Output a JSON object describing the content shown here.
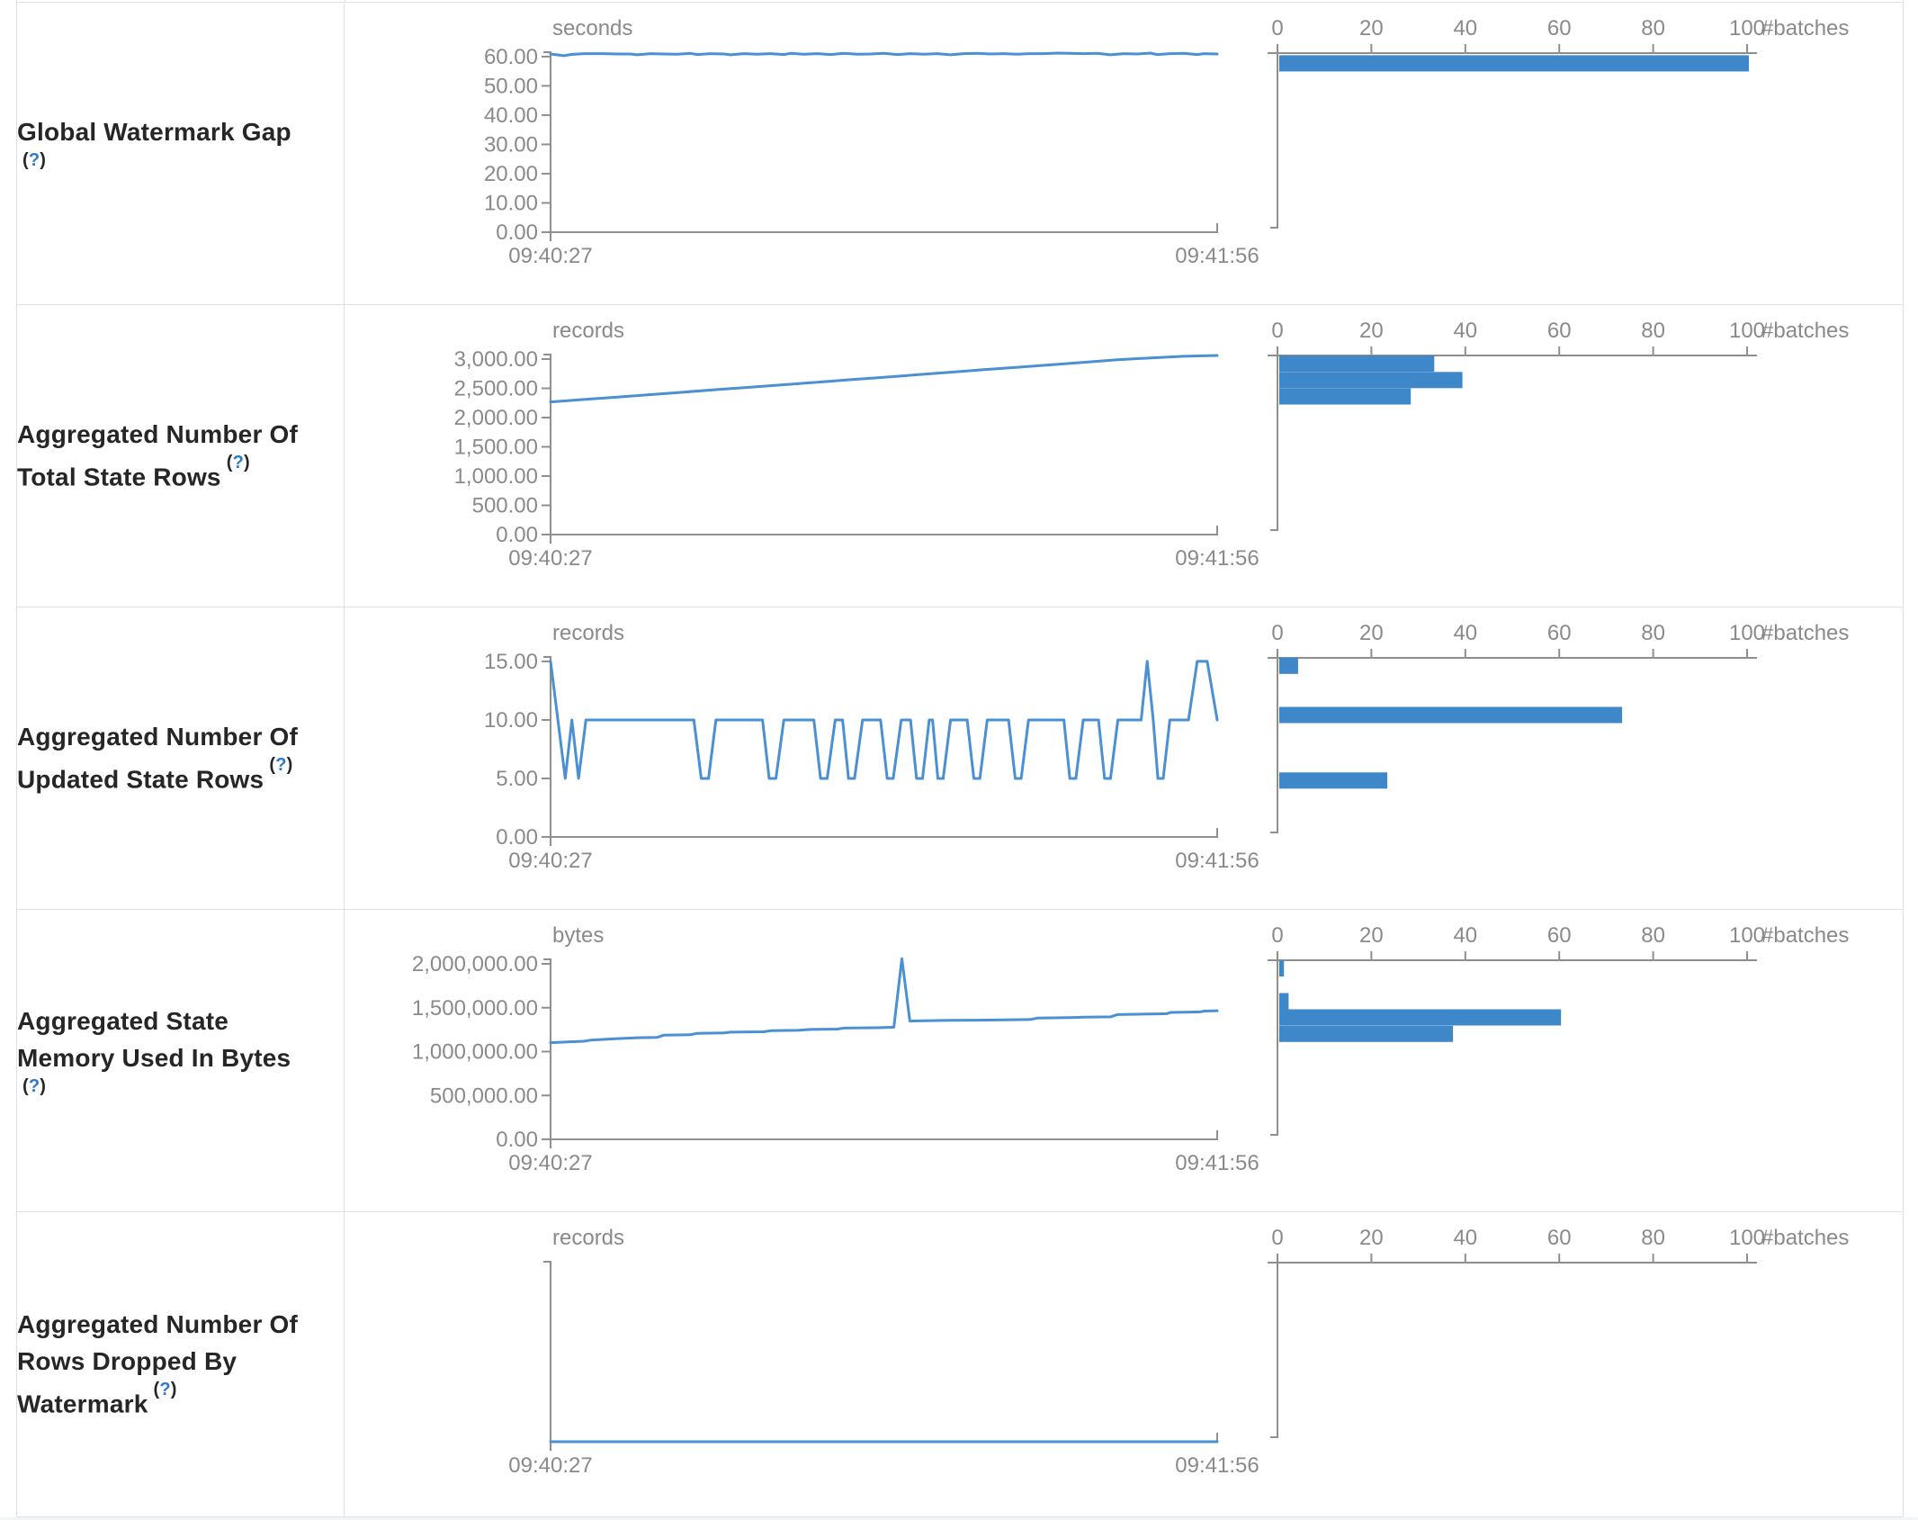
{
  "help_marker": {
    "open": "(",
    "q": "?",
    "close": ")"
  },
  "timeline_x_start": "09:40:27",
  "timeline_x_end": "09:41:56",
  "histogram_axis_label": "#batches",
  "colors": {
    "line": "#4a90d2",
    "bar": "#3e87c8",
    "axis": "#8f8f8f",
    "tick_text": "#8a8a8a",
    "label_text": "#262626",
    "help_link": "#3178c4",
    "border": "#dee2e6"
  },
  "chart_data": [
    {
      "type": "line",
      "metric": {
        "label_lines": [
          "Global Watermark Gap"
        ],
        "help_inline": false
      },
      "unit": "seconds",
      "timeline": {
        "x_ticks": [
          "09:40:27",
          "09:41:56"
        ],
        "y_tick_labels": [
          "60.00",
          "50.00",
          "40.00",
          "30.00",
          "20.00",
          "10.00",
          "0.00"
        ],
        "y_tick_max": 60,
        "ylim": [
          0,
          61.5
        ],
        "points": [
          [
            0,
            60.9
          ],
          [
            0.02,
            60.3
          ],
          [
            0.03,
            60.7
          ],
          [
            0.05,
            61.0
          ],
          [
            0.08,
            61.0
          ],
          [
            0.1,
            60.9
          ],
          [
            0.12,
            60.9
          ],
          [
            0.13,
            60.6
          ],
          [
            0.15,
            61.0
          ],
          [
            0.17,
            60.9
          ],
          [
            0.19,
            60.8
          ],
          [
            0.21,
            61.1
          ],
          [
            0.22,
            60.7
          ],
          [
            0.24,
            61.0
          ],
          [
            0.26,
            60.9
          ],
          [
            0.27,
            60.6
          ],
          [
            0.29,
            61.0
          ],
          [
            0.31,
            60.8
          ],
          [
            0.33,
            61.0
          ],
          [
            0.35,
            60.7
          ],
          [
            0.36,
            61.1
          ],
          [
            0.38,
            60.8
          ],
          [
            0.4,
            61.0
          ],
          [
            0.42,
            60.7
          ],
          [
            0.44,
            61.1
          ],
          [
            0.46,
            60.8
          ],
          [
            0.48,
            60.9
          ],
          [
            0.5,
            61.1
          ],
          [
            0.52,
            60.7
          ],
          [
            0.54,
            61.0
          ],
          [
            0.56,
            60.8
          ],
          [
            0.58,
            61.0
          ],
          [
            0.6,
            60.6
          ],
          [
            0.62,
            61.0
          ],
          [
            0.64,
            61.1
          ],
          [
            0.66,
            60.9
          ],
          [
            0.68,
            61.0
          ],
          [
            0.7,
            60.8
          ],
          [
            0.72,
            61.0
          ],
          [
            0.74,
            61.0
          ],
          [
            0.76,
            61.2
          ],
          [
            0.78,
            61.1
          ],
          [
            0.8,
            61.0
          ],
          [
            0.82,
            61.1
          ],
          [
            0.84,
            60.6
          ],
          [
            0.86,
            61.0
          ],
          [
            0.88,
            60.9
          ],
          [
            0.9,
            61.2
          ],
          [
            0.91,
            60.7
          ],
          [
            0.93,
            61.0
          ],
          [
            0.95,
            61.1
          ],
          [
            0.97,
            60.7
          ],
          [
            0.98,
            61.0
          ],
          [
            1,
            60.9
          ]
        ]
      },
      "histogram": {
        "x_tick_labels": [
          "0",
          "20",
          "40",
          "60",
          "80",
          "100"
        ],
        "x_max": 100,
        "bars": [
          {
            "value_level": 58,
            "count": 100
          }
        ]
      }
    },
    {
      "type": "line",
      "metric": {
        "label_lines": [
          "Aggregated Number Of",
          "Total State Rows"
        ],
        "help_inline": true
      },
      "unit": "records",
      "timeline": {
        "x_ticks": [
          "09:40:27",
          "09:41:56"
        ],
        "y_tick_labels": [
          "3,000.00",
          "2,500.00",
          "2,000.00",
          "1,500.00",
          "1,000.00",
          "500.00",
          "0.00"
        ],
        "y_tick_max": 3000,
        "ylim": [
          0,
          3077
        ],
        "points": [
          [
            0,
            2268
          ],
          [
            0.05,
            2310
          ],
          [
            0.1,
            2350
          ],
          [
            0.15,
            2392
          ],
          [
            0.2,
            2435
          ],
          [
            0.25,
            2478
          ],
          [
            0.3,
            2520
          ],
          [
            0.35,
            2562
          ],
          [
            0.4,
            2605
          ],
          [
            0.45,
            2648
          ],
          [
            0.5,
            2690
          ],
          [
            0.55,
            2732
          ],
          [
            0.6,
            2775
          ],
          [
            0.65,
            2818
          ],
          [
            0.7,
            2860
          ],
          [
            0.75,
            2902
          ],
          [
            0.8,
            2945
          ],
          [
            0.85,
            2988
          ],
          [
            0.9,
            3020
          ],
          [
            0.95,
            3048
          ],
          [
            1,
            3062
          ]
        ]
      },
      "histogram": {
        "x_tick_labels": [
          "0",
          "20",
          "40",
          "60",
          "80",
          "100"
        ],
        "x_max": 100,
        "bars": [
          {
            "value_level": 2937,
            "count": 33
          },
          {
            "value_level": 2657,
            "count": 39
          },
          {
            "value_level": 2377,
            "count": 28
          }
        ]
      }
    },
    {
      "type": "line",
      "metric": {
        "label_lines": [
          "Aggregated Number Of",
          "Updated State Rows"
        ],
        "help_inline": true
      },
      "unit": "records",
      "timeline": {
        "x_ticks": [
          "09:40:27",
          "09:41:56"
        ],
        "y_tick_labels": [
          "15.00",
          "10.00",
          "5.00",
          "0.00"
        ],
        "y_tick_max": 15,
        "ylim": [
          0,
          15.38
        ],
        "points": [
          [
            0,
            15
          ],
          [
            0.022,
            5
          ],
          [
            0.032,
            10
          ],
          [
            0.042,
            5
          ],
          [
            0.053,
            10
          ],
          [
            0.215,
            10
          ],
          [
            0.226,
            5
          ],
          [
            0.237,
            5
          ],
          [
            0.248,
            10
          ],
          [
            0.318,
            10
          ],
          [
            0.328,
            5
          ],
          [
            0.338,
            5
          ],
          [
            0.35,
            10
          ],
          [
            0.395,
            10
          ],
          [
            0.405,
            5
          ],
          [
            0.415,
            5
          ],
          [
            0.427,
            10
          ],
          [
            0.438,
            10
          ],
          [
            0.447,
            5
          ],
          [
            0.456,
            5
          ],
          [
            0.468,
            10
          ],
          [
            0.495,
            10
          ],
          [
            0.505,
            5
          ],
          [
            0.514,
            5
          ],
          [
            0.526,
            10
          ],
          [
            0.54,
            10
          ],
          [
            0.549,
            5
          ],
          [
            0.558,
            5
          ],
          [
            0.568,
            10
          ],
          [
            0.573,
            10
          ],
          [
            0.581,
            5
          ],
          [
            0.589,
            5
          ],
          [
            0.6,
            10
          ],
          [
            0.625,
            10
          ],
          [
            0.635,
            5
          ],
          [
            0.644,
            5
          ],
          [
            0.655,
            10
          ],
          [
            0.687,
            10
          ],
          [
            0.697,
            5
          ],
          [
            0.706,
            5
          ],
          [
            0.717,
            10
          ],
          [
            0.77,
            10
          ],
          [
            0.779,
            5
          ],
          [
            0.788,
            5
          ],
          [
            0.799,
            10
          ],
          [
            0.822,
            10
          ],
          [
            0.831,
            5
          ],
          [
            0.84,
            5
          ],
          [
            0.851,
            10
          ],
          [
            0.886,
            10
          ],
          [
            0.895,
            15
          ],
          [
            0.904,
            10
          ],
          [
            0.911,
            5
          ],
          [
            0.919,
            5
          ],
          [
            0.929,
            10
          ],
          [
            0.957,
            10
          ],
          [
            0.97,
            15
          ],
          [
            0.985,
            15
          ],
          [
            1,
            10
          ]
        ]
      },
      "histogram": {
        "x_tick_labels": [
          "0",
          "20",
          "40",
          "60",
          "80",
          "100"
        ],
        "x_max": 100,
        "bars": [
          {
            "value_level": 14.7,
            "count": 4
          },
          {
            "value_level": 10.5,
            "count": 73
          },
          {
            "value_level": 4.9,
            "count": 23
          }
        ]
      }
    },
    {
      "type": "line",
      "metric": {
        "label_lines": [
          "Aggregated State",
          "Memory Used In Bytes"
        ],
        "help_inline": false
      },
      "unit": "bytes",
      "timeline": {
        "x_ticks": [
          "09:40:27",
          "09:41:56"
        ],
        "y_tick_labels": [
          "2,000,000.00",
          "1,500,000.00",
          "1,000,000.00",
          "500,000.00",
          "0.00"
        ],
        "y_tick_max": 2000000,
        "ylim": [
          0,
          2051282
        ],
        "points": [
          [
            0,
            1102000
          ],
          [
            0.03,
            1112000
          ],
          [
            0.05,
            1118000
          ],
          [
            0.06,
            1130000
          ],
          [
            0.1,
            1148000
          ],
          [
            0.13,
            1158000
          ],
          [
            0.16,
            1162000
          ],
          [
            0.17,
            1188000
          ],
          [
            0.21,
            1192000
          ],
          [
            0.22,
            1208000
          ],
          [
            0.26,
            1212000
          ],
          [
            0.27,
            1222000
          ],
          [
            0.32,
            1226000
          ],
          [
            0.33,
            1238000
          ],
          [
            0.37,
            1242000
          ],
          [
            0.39,
            1252000
          ],
          [
            0.43,
            1256000
          ],
          [
            0.44,
            1268000
          ],
          [
            0.49,
            1272000
          ],
          [
            0.515,
            1278000
          ],
          [
            0.527,
            2058000
          ],
          [
            0.539,
            1348000
          ],
          [
            0.56,
            1352000
          ],
          [
            0.6,
            1356000
          ],
          [
            0.64,
            1358000
          ],
          [
            0.68,
            1362000
          ],
          [
            0.72,
            1366000
          ],
          [
            0.73,
            1382000
          ],
          [
            0.78,
            1388000
          ],
          [
            0.8,
            1392000
          ],
          [
            0.84,
            1396000
          ],
          [
            0.85,
            1422000
          ],
          [
            0.88,
            1426000
          ],
          [
            0.91,
            1430000
          ],
          [
            0.925,
            1432000
          ],
          [
            0.93,
            1446000
          ],
          [
            0.96,
            1450000
          ],
          [
            0.975,
            1452000
          ],
          [
            0.98,
            1462000
          ],
          [
            1,
            1466000
          ]
        ]
      },
      "histogram": {
        "x_tick_labels": [
          "0",
          "20",
          "40",
          "60",
          "80",
          "100"
        ],
        "x_max": 100,
        "bars": [
          {
            "value_level": 1958000,
            "count": 1
          },
          {
            "value_level": 1585000,
            "count": 2
          },
          {
            "value_level": 1400000,
            "count": 60
          },
          {
            "value_level": 1212000,
            "count": 37
          }
        ]
      }
    },
    {
      "type": "line",
      "metric": {
        "label_lines": [
          "Aggregated Number Of",
          "Rows Dropped By",
          "Watermark"
        ],
        "help_inline": true
      },
      "unit": "records",
      "timeline": {
        "x_ticks": [
          "09:40:27",
          "09:41:56"
        ],
        "y_tick_labels": [],
        "y_tick_max": 0,
        "ylim": [
          0,
          1
        ],
        "points": [
          [
            0,
            0
          ],
          [
            1,
            0
          ]
        ]
      },
      "histogram": {
        "x_tick_labels": [
          "0",
          "20",
          "40",
          "60",
          "80",
          "100"
        ],
        "x_max": 100,
        "bars": []
      }
    }
  ]
}
